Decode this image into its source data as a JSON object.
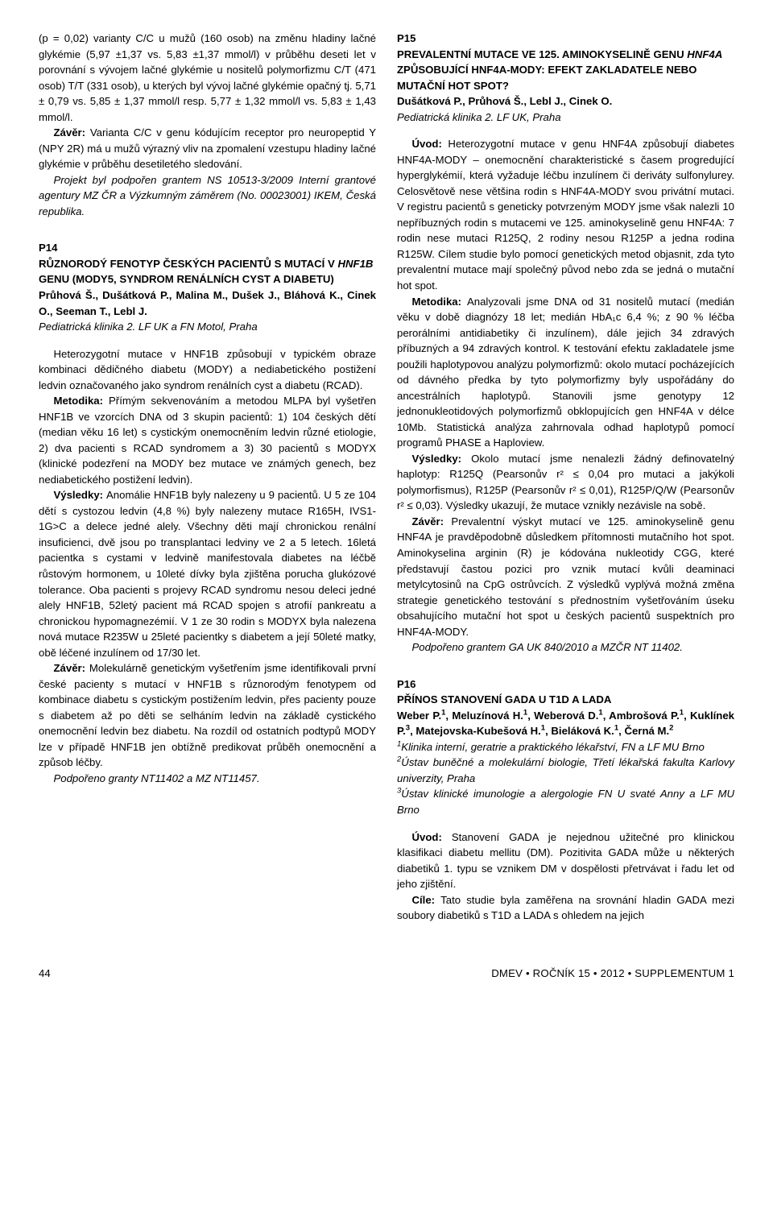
{
  "left": {
    "intro": [
      "(p = 0,02) varianty C/C u mužů (160 osob) na změnu hladiny lačné glykémie (5,97 ±1,37 vs. 5,83 ±1,37 mmol/l) v průběhu deseti let v porovnání s vývojem lačné glykémie u nositelů polymorfizmu C/T (471 osob) T/T (331 osob), u kterých byl vývoj lačné glykémie opačný tj. 5,71 ± 0,79 vs. 5,85 ± 1,37 mmol/l resp. 5,77 ± 1,32 mmol/l vs. 5,83 ± 1,43 mmol/l.",
      "Varianta C/C v genu kódujícím receptor pro neuropeptid Y (NPY 2R) má u mužů výrazný vliv na zpomalení vzestupu hladiny lačné glykémie v průběhu desetiletého sledování.",
      "Projekt byl podpořen grantem NS 10513-3/2009 Interní grantové agentury MZ ČR a Výzkumným záměrem (No. 00023001) IKEM, Česká republika."
    ],
    "p14": {
      "code": "P14",
      "title_html": "RŮZNORODÝ FENOTYP ČESKÝCH PACIENTŮ S MUTACÍ V <span class=\"italic\">HNF1B</span> GENU (MODY5, SYNDROM RENÁLNÍCH CYST A DIABETU)",
      "authors": "Průhová Š., Dušátková P., Malina M., Dušek J., Bláhová K., Cinek O., Seeman T., Lebl J.",
      "affil": "Pediatrická klinika 2. LF UK a FN Motol, Praha",
      "body": [
        "Heterozygotní mutace v HNF1B způsobují v typickém obraze kombinaci dědičného diabetu (MODY) a nediabetického postižení ledvin označovaného jako syndrom renálních cyst a diabetu (RCAD).",
        "Přímým sekvenováním a metodou MLPA byl vyšetřen HNF1B ve vzorcích DNA od 3 skupin pacientů: 1) 104 českých dětí (median věku 16 let) s cystickým onemocněním ledvin různé etiologie, 2) dva pacienti s RCAD syndromem a 3) 30 pacientů s MODYX (klinické podezření na MODY bez mutace ve známých genech, bez nediabetického postižení ledvin).",
        "Anomálie HNF1B byly nalezeny u 9 pacientů. U 5 ze 104 dětí s cystozou ledvin (4,8 %) byly nalezeny mutace R165H, IVS1-1G>C a delece jedné alely. Všechny děti mají chronickou renální insuficienci, dvě jsou po transplantaci ledviny ve 2 a 5 letech. 16letá pacientka s cystami v ledvině manifestovala diabetes na léčbě růstovým hormonem, u 10leté dívky byla zjištěna porucha glukózové tolerance. Oba pacienti s projevy RCAD syndromu nesou deleci jedné alely HNF1B, 52letý pacient má RCAD spojen s atrofií pankreatu a chronickou hypomagnezémií. V 1 ze 30 rodin s MODYX byla nalezena nová mutace R235W u 25leté pacientky s diabetem a její 50leté matky, obě léčené inzulínem od 17/30 let.",
        "Molekulárně genetickým vyšetřením jsme identifikovali první české pacienty s mutací v HNF1B s různorodým fenotypem od kombinace diabetu s cystickým postižením ledvin, přes pacienty pouze s diabetem až po děti se selháním ledvin na základě cystického onemocnění ledvin bez diabetu. Na rozdíl od ostatních podtypů MODY lze v případě HNF1B jen obtížně predikovat průběh onemocnění a způsob léčby.",
        "Podpořeno granty NT11402 a MZ NT11457."
      ],
      "labels": {
        "metodika": "Metodika: ",
        "vysledky": "Výsledky: ",
        "zaver": "Závěr: "
      }
    }
  },
  "right": {
    "p15": {
      "code": "P15",
      "title_html": "PREVALENTNÍ MUTACE VE 125. AMINOKYSELINĚ GENU <span class=\"italic\">HNF4A</span> ZPŮSOBUJÍCÍ HNF4A-MODY: EFEKT ZAKLADATELE NEBO MUTAČNÍ HOT SPOT?",
      "authors": "Dušátková P., Průhová Š., Lebl J., Cinek O.",
      "affil": "Pediatrická klinika 2. LF UK, Praha",
      "body": [
        "Heterozygotní mutace v genu HNF4A způsobují diabetes HNF4A-MODY – onemocnění charakteristické s časem progredující hyperglykémií, která vyžaduje léčbu inzulínem či deriváty sulfonylurey. Celosvětově nese většina rodin s HNF4A-MODY svou privátní mutaci. V registru pacientů s geneticky potvrzeným MODY jsme však nalezli 10 nepříbuzných rodin s mutacemi ve 125. aminokyselině genu HNF4A: 7 rodin nese mutaci R125Q, 2 rodiny nesou R125P a jedna rodina R125W. Cílem studie bylo pomocí genetických metod objasnit, zda tyto prevalentní mutace mají společný původ nebo zda se jedná o mutační hot spot.",
        "Analyzovali jsme DNA od 31 nositelů mutací (medián věku v době diagnózy 18 let; medián HbA₁c 6,4 %; z 90 % léčba perorálními antidiabetiky či inzulínem), dále jejich 34 zdravých příbuzných a 94 zdravých kontrol. K testování efektu zakladatele jsme použili haplotypovou analýzu polymorfizmů: okolo mutací pocházejících od dávného předka by tyto polymorfizmy byly uspořádány do ancestrálních haplotypů. Stanovili jsme genotypy 12 jednonukleotidových polymorfizmů obklopujících gen HNF4A v délce 10Mb. Statistická analýza zahrnovala odhad haplotypů pomocí programů PHASE a Haploview.",
        "Okolo mutací jsme nenalezli žádný definovatelný haplotyp: R125Q (Pearsonův r² ≤ 0,04 pro mutaci a jakýkoli polymorfismus), R125P (Pearsonův r² ≤ 0,01), R125P/Q/W (Pearsonův r² ≤ 0,03). Výsledky ukazují, že mutace vznikly nezávisle na sobě.",
        "Prevalentní výskyt mutací ve 125. aminokyselině genu HNF4A je pravděpodobně důsledkem přítomnosti mutačního hot spot. Aminokyselina arginin (R) je kódována nukleotidy CGG, které představují častou pozici pro vznik mutací kvůli deaminaci metylcytosinů na CpG ostrůvcích. Z výsledků vyplývá možná změna strategie genetického testování s přednostním vyšetřováním úseku obsahujícího mutační hot spot u českých pacientů suspektních pro HNF4A-MODY.",
        "Podpořeno grantem GA UK 840/2010 a MZČR NT 11402."
      ],
      "labels": {
        "uvod": "Úvod: ",
        "metodika": "Metodika: ",
        "vysledky": "Výsledky: ",
        "zaver": "Závěr: "
      }
    },
    "p16": {
      "code": "P16",
      "title": "PŘÍNOS STANOVENÍ GADA U T1D A LADA",
      "authors_html": "Weber P.<sup>1</sup>, Meluzínová H.<sup>1</sup>, Weberová D.<sup>1</sup>, Ambrošová P.<sup>1</sup>, Kuklínek P.<sup>3</sup>, Matejovska-Kubešová H.<sup>1</sup>, Bieláková K.<sup>1</sup>, Černá M.<sup>2</sup>",
      "affils": [
        "<sup>1</sup>Klinika interní, geratrie a praktického lékařství, FN a LF MU Brno",
        "<sup>2</sup>Ústav buněčné a molekulární biologie, Třetí lékařská fakulta Karlovy univerzity, Praha",
        "<sup>3</sup>Ústav klinické imunologie a alergologie FN U svaté Anny a LF MU Brno"
      ],
      "body": [
        "Stanovení GADA je nejednou užitečné pro klinickou klasifikaci diabetu mellitu (DM). Pozitivita GADA může u některých diabetiků 1. typu se vznikem DM v dospělosti přetrvávat i řadu let od jeho zjištění.",
        "Tato studie byla zaměřena na srovnání hladin GADA mezi soubory diabetiků s T1D a LADA s ohledem na jejich"
      ],
      "labels": {
        "uvod": "Úvod: ",
        "cile": "Cíle: "
      }
    }
  },
  "footer": {
    "page": "44",
    "journal": "DMEV • ROČNÍK 15 • 2012 • SUPPLEMENTUM 1"
  }
}
